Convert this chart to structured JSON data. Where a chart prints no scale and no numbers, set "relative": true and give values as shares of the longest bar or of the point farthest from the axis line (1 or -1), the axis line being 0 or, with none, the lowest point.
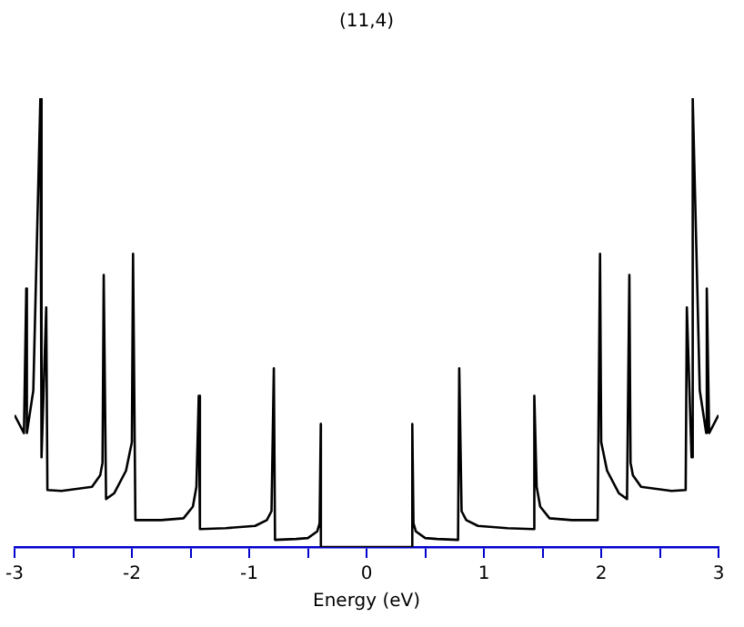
{
  "chart_data": {
    "type": "line",
    "title": "(11,4)",
    "xlabel": "Energy (eV)",
    "relative": true,
    "tick_labels": "x",
    "grid": false,
    "legend": false,
    "marker": "none",
    "line_style": "solid",
    "xlim": [
      -3,
      3
    ],
    "xticks": [
      -3,
      {
        "value": -2.5,
        "label": null
      },
      -2,
      {
        "value": -1.5,
        "label": null
      },
      -1,
      {
        "value": -0.5,
        "label": null
      },
      0,
      {
        "value": 0.5,
        "label": null
      },
      1,
      {
        "value": 1.5,
        "label": null
      },
      2,
      {
        "value": 2.5,
        "label": null
      },
      3
    ],
    "series": [
      {
        "color": "#000000",
        "x": [
          -3.0,
          -2.92,
          -2.9,
          -2.895,
          -2.84,
          -2.78,
          -2.77,
          -2.73,
          -2.72,
          -2.6,
          -2.34,
          -2.27,
          -2.25,
          -2.24,
          -2.22,
          -2.15,
          -2.05,
          -2.0,
          -1.99,
          -1.97,
          -1.75,
          -1.56,
          -1.48,
          -1.45,
          -1.43,
          -1.42,
          -1.2,
          -0.95,
          -0.85,
          -0.81,
          -0.79,
          -0.78,
          -0.6,
          -0.5,
          -0.42,
          -0.4,
          -0.39,
          -0.389,
          0,
          0.389,
          0.39,
          0.4,
          0.42,
          0.5,
          0.6,
          0.78,
          0.79,
          0.81,
          0.85,
          0.95,
          1.2,
          1.42,
          1.43,
          1.45,
          1.48,
          1.56,
          1.75,
          1.97,
          1.99,
          2.0,
          2.05,
          2.15,
          2.22,
          2.24,
          2.25,
          2.27,
          2.34,
          2.6,
          2.72,
          2.73,
          2.77,
          2.78,
          2.84,
          2.895,
          2.9,
          2.92,
          3.0
        ],
        "values": [
          0.294,
          0.254,
          0.576,
          0.254,
          0.349,
          1.0,
          0.2,
          0.534,
          0.127,
          0.125,
          0.134,
          0.16,
          0.188,
          0.606,
          0.107,
          0.12,
          0.17,
          0.234,
          0.653,
          0.06,
          0.06,
          0.064,
          0.09,
          0.134,
          0.337,
          0.04,
          0.042,
          0.047,
          0.06,
          0.08,
          0.398,
          0.016,
          0.018,
          0.02,
          0.035,
          0.053,
          0.274,
          0,
          0,
          0,
          0.274,
          0.053,
          0.035,
          0.02,
          0.018,
          0.016,
          0.398,
          0.08,
          0.06,
          0.047,
          0.042,
          0.04,
          0.337,
          0.134,
          0.09,
          0.064,
          0.06,
          0.06,
          0.653,
          0.234,
          0.17,
          0.12,
          0.107,
          0.606,
          0.188,
          0.16,
          0.134,
          0.125,
          0.127,
          0.534,
          0.2,
          1.0,
          0.349,
          0.254,
          0.576,
          0.254,
          0.294
        ]
      }
    ]
  }
}
